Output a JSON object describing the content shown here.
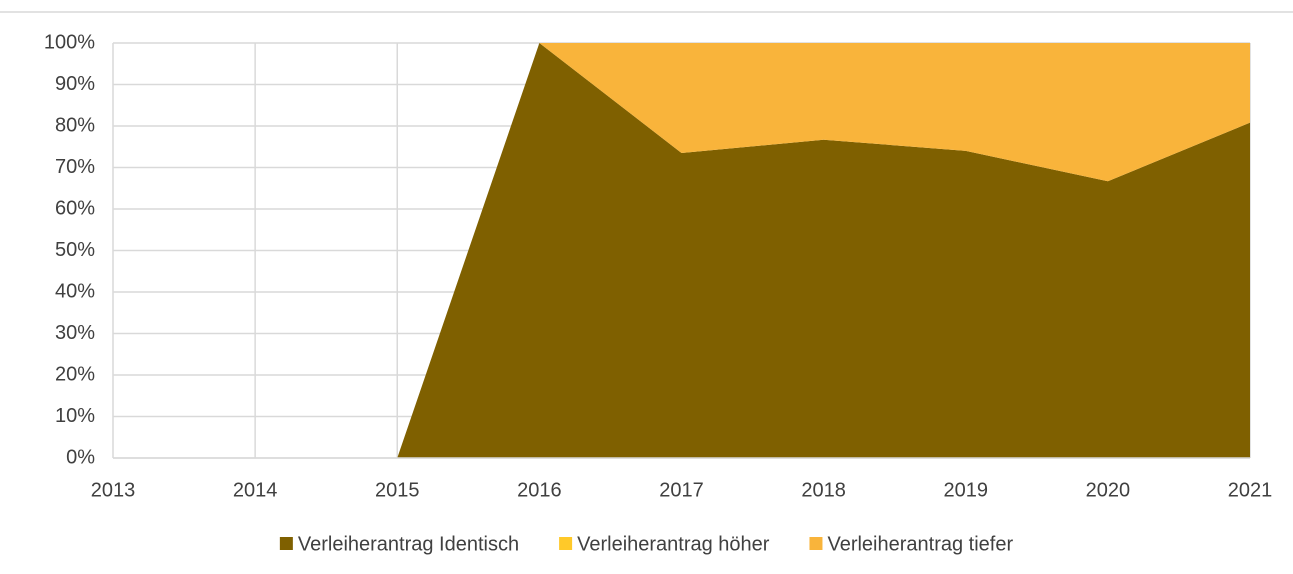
{
  "chart_data": {
    "type": "stacked_area",
    "categories": [
      "2013",
      "2014",
      "2015",
      "2016",
      "2017",
      "2018",
      "2019",
      "2020",
      "2021"
    ],
    "series": [
      {
        "name": "Verleiherantrag Identisch",
        "color": "#7f6000",
        "values": [
          0,
          0,
          0,
          100,
          73.5,
          76.7,
          74,
          66.7,
          80.8
        ]
      },
      {
        "name": "Verleiherantrag höher",
        "color": "#ffc929",
        "values": [
          0,
          0,
          0,
          0,
          0,
          0,
          0,
          0,
          0
        ]
      },
      {
        "name": "Verleiherantrag tiefer",
        "color": "#f9b43b",
        "values": [
          0,
          0,
          0,
          0,
          26.5,
          23.3,
          26,
          33.3,
          19.2
        ]
      }
    ],
    "ylim": [
      0,
      100
    ],
    "yticks": [
      {
        "value": 0,
        "label": "0%"
      },
      {
        "value": 10,
        "label": "10%"
      },
      {
        "value": 20,
        "label": "20%"
      },
      {
        "value": 30,
        "label": "30%"
      },
      {
        "value": 40,
        "label": "40%"
      },
      {
        "value": 50,
        "label": "50%"
      },
      {
        "value": 60,
        "label": "60%"
      },
      {
        "value": 70,
        "label": "70%"
      },
      {
        "value": 80,
        "label": "80%"
      },
      {
        "value": 90,
        "label": "90%"
      },
      {
        "value": 100,
        "label": "100%"
      }
    ],
    "grid": true,
    "legend": "bottom"
  }
}
